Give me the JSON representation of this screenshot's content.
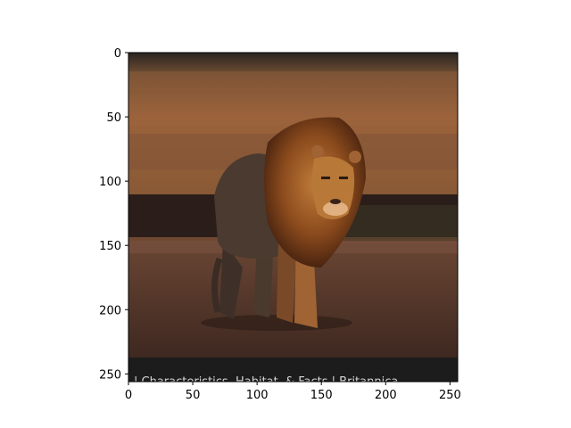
{
  "figure": {
    "image_subject": "lion walking on dirt ground at sunset",
    "caption_text": "| Characteristics, Habitat, & Facts | Britannica",
    "x_ticks": [
      "0",
      "50",
      "100",
      "150",
      "200",
      "250"
    ],
    "y_ticks": [
      "0",
      "50",
      "100",
      "150",
      "200",
      "250"
    ],
    "x_range": [
      0,
      256
    ],
    "y_range": [
      0,
      256
    ],
    "colors": {
      "sky_top": "#2a2420",
      "field": "#8a5a36",
      "field_light": "#a06a40",
      "dark_band": "#2b1e1a",
      "ground": "#5a3a2c",
      "ground_dark": "#3e2820",
      "lion_body": "#4a3a30",
      "lion_mane": "#8a4a1c",
      "lion_face": "#b87838",
      "caption_bar": "#1c1c1c",
      "caption_text": "#d8d8d8"
    }
  }
}
